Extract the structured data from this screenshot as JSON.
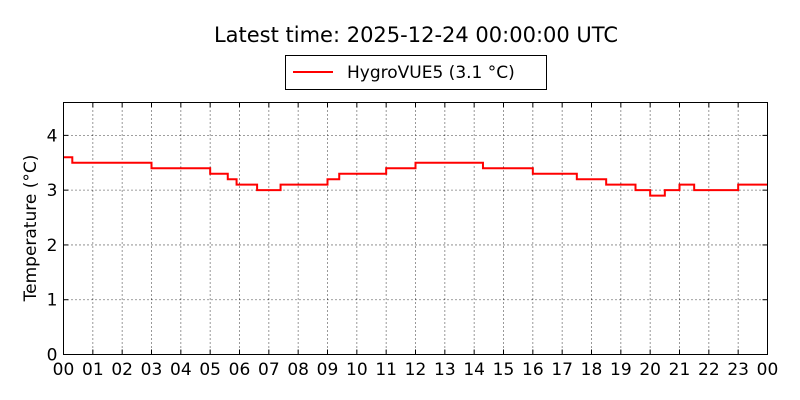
{
  "chart_data": {
    "type": "line",
    "title": "Latest time: 2025-12-24 00:00:00 UTC",
    "xlabel": "",
    "ylabel": "Temperature (°C)",
    "x_ticks": [
      "00",
      "01",
      "02",
      "03",
      "04",
      "05",
      "06",
      "07",
      "08",
      "09",
      "10",
      "11",
      "12",
      "13",
      "14",
      "15",
      "16",
      "17",
      "18",
      "19",
      "20",
      "21",
      "22",
      "23",
      "00"
    ],
    "xlim": [
      0,
      24
    ],
    "ylim": [
      0,
      4.6
    ],
    "y_ticks": [
      0,
      1,
      2,
      3,
      4
    ],
    "grid": true,
    "legend_position": "top-center",
    "series": [
      {
        "name": "HygroVUE5 (3.1 °C)",
        "color": "#ff0000",
        "x": [
          0.0,
          0.3,
          0.3,
          1.0,
          1.0,
          1.5,
          1.5,
          2.0,
          2.0,
          2.5,
          2.5,
          3.0,
          3.0,
          3.5,
          3.5,
          4.0,
          4.0,
          4.5,
          4.5,
          5.0,
          5.0,
          5.6,
          5.6,
          5.9,
          5.9,
          6.6,
          6.6,
          6.9,
          6.9,
          7.4,
          7.4,
          8.0,
          8.0,
          8.5,
          8.5,
          9.0,
          9.0,
          9.4,
          9.4,
          9.6,
          9.6,
          10.0,
          10.0,
          10.5,
          10.5,
          11.0,
          11.0,
          11.5,
          11.5,
          12.0,
          12.0,
          12.5,
          12.5,
          13.0,
          13.0,
          13.5,
          13.5,
          14.0,
          14.0,
          14.3,
          14.3,
          14.5,
          14.5,
          15.0,
          15.0,
          15.5,
          15.5,
          16.0,
          16.0,
          16.5,
          16.5,
          17.0,
          17.0,
          17.5,
          17.5,
          18.0,
          18.0,
          18.5,
          18.5,
          19.0,
          19.0,
          19.5,
          19.5,
          20.0,
          20.0,
          20.5,
          20.5,
          21.0,
          21.0,
          21.5,
          21.5,
          22.0,
          22.0,
          22.5,
          22.5,
          23.0,
          23.0,
          23.5,
          23.5,
          24.0
        ],
        "y": [
          3.6,
          3.6,
          3.5,
          3.5,
          3.5,
          3.5,
          3.5,
          3.5,
          3.5,
          3.5,
          3.5,
          3.5,
          3.4,
          3.4,
          3.4,
          3.4,
          3.4,
          3.4,
          3.4,
          3.4,
          3.3,
          3.3,
          3.2,
          3.2,
          3.1,
          3.1,
          3.0,
          3.0,
          3.0,
          3.0,
          3.1,
          3.1,
          3.1,
          3.1,
          3.1,
          3.1,
          3.2,
          3.2,
          3.3,
          3.3,
          3.3,
          3.3,
          3.3,
          3.3,
          3.3,
          3.3,
          3.4,
          3.4,
          3.4,
          3.4,
          3.5,
          3.5,
          3.5,
          3.5,
          3.5,
          3.5,
          3.5,
          3.5,
          3.5,
          3.5,
          3.4,
          3.4,
          3.4,
          3.4,
          3.4,
          3.4,
          3.4,
          3.4,
          3.3,
          3.3,
          3.3,
          3.3,
          3.3,
          3.3,
          3.2,
          3.2,
          3.2,
          3.2,
          3.1,
          3.1,
          3.1,
          3.1,
          3.0,
          3.0,
          2.9,
          2.9,
          3.0,
          3.0,
          3.1,
          3.1,
          3.0,
          3.0,
          3.0,
          3.0,
          3.0,
          3.0,
          3.1,
          3.1,
          3.1,
          3.1
        ]
      }
    ]
  }
}
